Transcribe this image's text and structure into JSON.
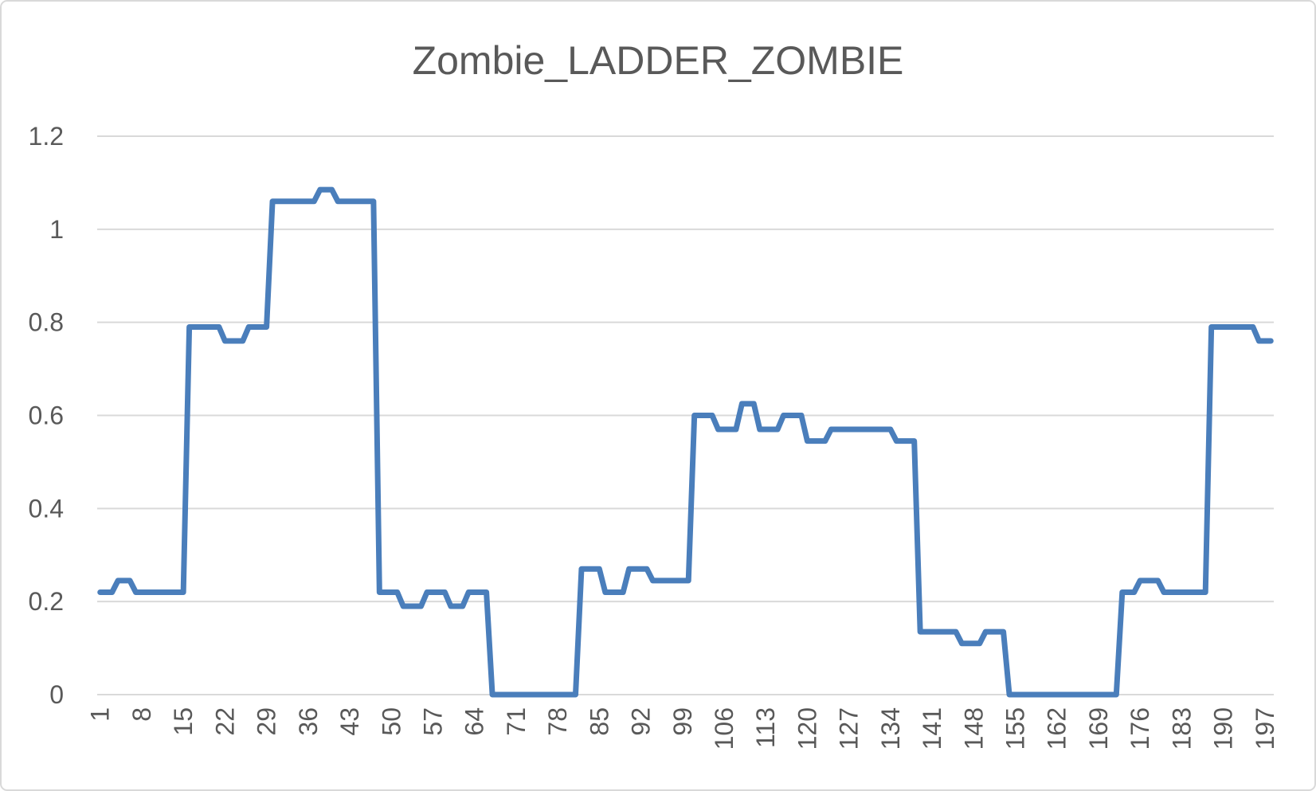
{
  "chart_data": {
    "type": "line",
    "title": "Zombie_LADDER_ZOMBIE",
    "categories": [
      1,
      null,
      null,
      null,
      null,
      null,
      null,
      8,
      null,
      null,
      null,
      null,
      null,
      null,
      15,
      null,
      null,
      null,
      null,
      null,
      null,
      22,
      null,
      null,
      null,
      null,
      null,
      null,
      29,
      null,
      null,
      null,
      null,
      null,
      null,
      36,
      null,
      null,
      null,
      null,
      null,
      null,
      43,
      null,
      null,
      null,
      null,
      null,
      null,
      50,
      null,
      null,
      null,
      null,
      null,
      null,
      57,
      null,
      null,
      null,
      null,
      null,
      null,
      64,
      null,
      null,
      null,
      null,
      null,
      null,
      71,
      null,
      null,
      null,
      null,
      null,
      null,
      78,
      null,
      null,
      null,
      null,
      null,
      null,
      85,
      null,
      null,
      null,
      null,
      null,
      null,
      92,
      null,
      null,
      null,
      null,
      null,
      null,
      99,
      null,
      null,
      null,
      null,
      null,
      null,
      106,
      null,
      null,
      null,
      null,
      null,
      null,
      113,
      null,
      null,
      null,
      null,
      null,
      null,
      120,
      null,
      null,
      null,
      null,
      null,
      null,
      127,
      null,
      null,
      null,
      null,
      null,
      null,
      134,
      null,
      null,
      null,
      null,
      null,
      null,
      141,
      null,
      null,
      null,
      null,
      null,
      null,
      148,
      null,
      null,
      null,
      null,
      null,
      null,
      155,
      null,
      null,
      null,
      null,
      null,
      null,
      162,
      null,
      null,
      null,
      null,
      null,
      null,
      169,
      null,
      null,
      null,
      null,
      null,
      null,
      176,
      null,
      null,
      null,
      null,
      null,
      null,
      183,
      null,
      null,
      null,
      null,
      null,
      null,
      190,
      null,
      null,
      null,
      null,
      null,
      null,
      197,
      null
    ],
    "series": [
      {
        "name": "Zombie_LADDER_ZOMBIE",
        "color": "#4a7ebb",
        "values": [
          0.22,
          0.22,
          0.22,
          0.245,
          0.245,
          0.245,
          0.22,
          0.22,
          0.22,
          0.22,
          0.22,
          0.22,
          0.22,
          0.22,
          0.22,
          0.79,
          0.79,
          0.79,
          0.79,
          0.79,
          0.79,
          0.76,
          0.76,
          0.76,
          0.76,
          0.79,
          0.79,
          0.79,
          0.79,
          1.06,
          1.06,
          1.06,
          1.06,
          1.06,
          1.06,
          1.06,
          1.06,
          1.085,
          1.085,
          1.085,
          1.06,
          1.06,
          1.06,
          1.06,
          1.06,
          1.06,
          1.06,
          0.22,
          0.22,
          0.22,
          0.22,
          0.19,
          0.19,
          0.19,
          0.19,
          0.22,
          0.22,
          0.22,
          0.22,
          0.19,
          0.19,
          0.19,
          0.22,
          0.22,
          0.22,
          0.22,
          0,
          0,
          0,
          0,
          0,
          0,
          0,
          0,
          0,
          0,
          0,
          0,
          0,
          0,
          0,
          0.27,
          0.27,
          0.27,
          0.27,
          0.22,
          0.22,
          0.22,
          0.22,
          0.27,
          0.27,
          0.27,
          0.27,
          0.245,
          0.245,
          0.245,
          0.245,
          0.245,
          0.245,
          0.245,
          0.6,
          0.6,
          0.6,
          0.6,
          0.57,
          0.57,
          0.57,
          0.57,
          0.625,
          0.625,
          0.625,
          0.57,
          0.57,
          0.57,
          0.57,
          0.6,
          0.6,
          0.6,
          0.6,
          0.545,
          0.545,
          0.545,
          0.545,
          0.57,
          0.57,
          0.57,
          0.57,
          0.57,
          0.57,
          0.57,
          0.57,
          0.57,
          0.57,
          0.57,
          0.545,
          0.545,
          0.545,
          0.545,
          0.135,
          0.135,
          0.135,
          0.135,
          0.135,
          0.135,
          0.135,
          0.11,
          0.11,
          0.11,
          0.11,
          0.135,
          0.135,
          0.135,
          0.135,
          0,
          0,
          0,
          0,
          0,
          0,
          0,
          0,
          0,
          0,
          0,
          0,
          0,
          0,
          0,
          0,
          0,
          0,
          0,
          0.22,
          0.22,
          0.22,
          0.245,
          0.245,
          0.245,
          0.245,
          0.22,
          0.22,
          0.22,
          0.22,
          0.22,
          0.22,
          0.22,
          0.22,
          0.79,
          0.79,
          0.79,
          0.79,
          0.79,
          0.79,
          0.79,
          0.79,
          0.76,
          0.76,
          0.76
        ]
      }
    ],
    "ylim": [
      0,
      1.2
    ],
    "yticks": [
      0,
      0.2,
      0.4,
      0.6,
      0.8,
      1,
      1.2
    ],
    "grid": true
  }
}
